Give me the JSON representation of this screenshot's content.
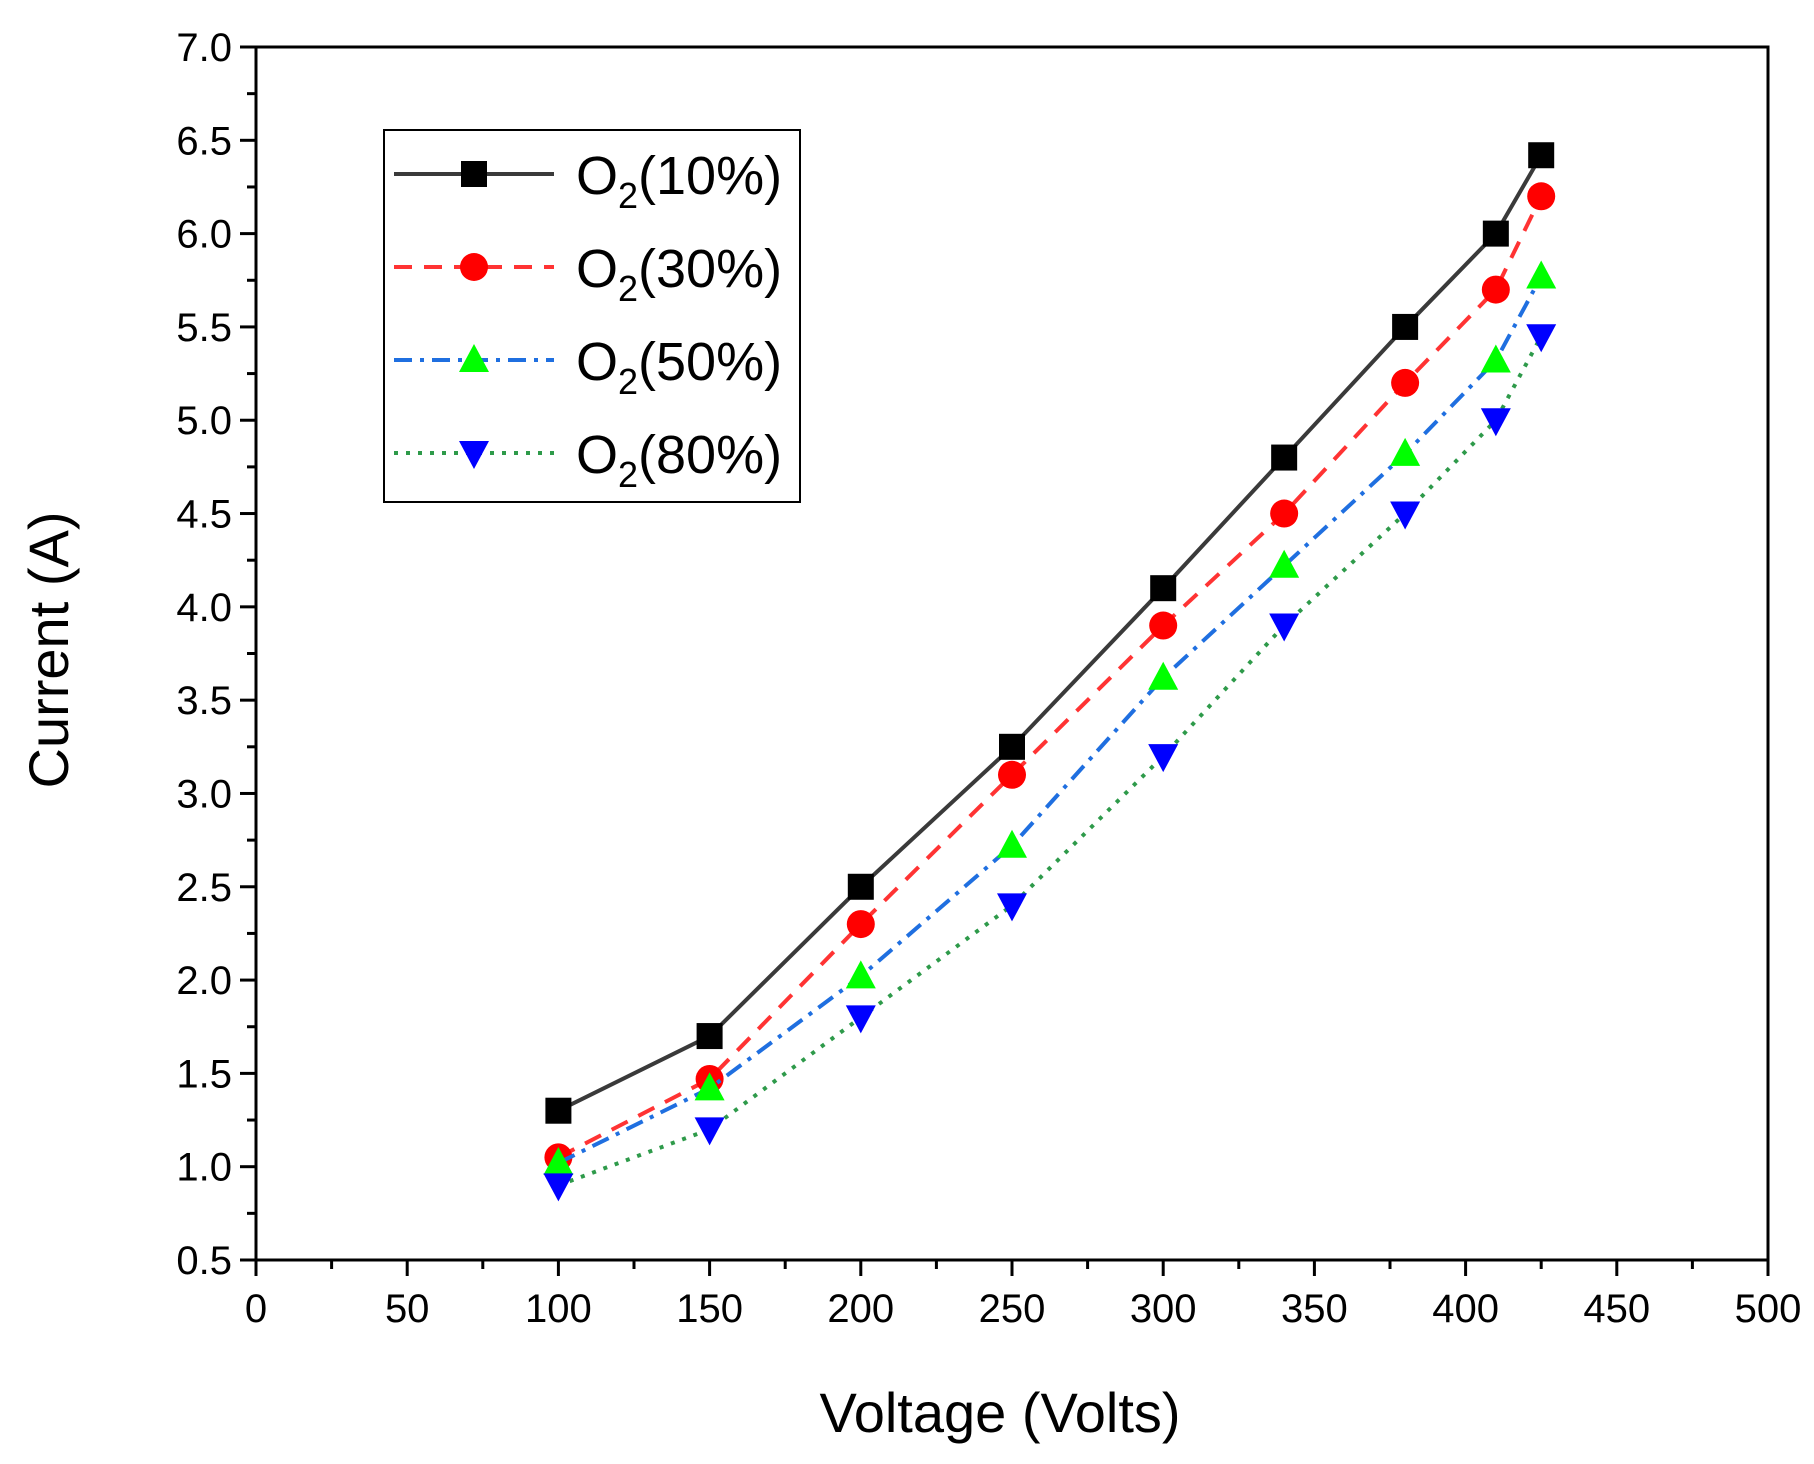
{
  "chart_data": {
    "type": "line",
    "xlabel": "Voltage (Volts)",
    "ylabel": "Current (A)",
    "xlim": [
      0,
      500
    ],
    "ylim": [
      0.5,
      7.0
    ],
    "x_ticks": [
      "0",
      "50",
      "100",
      "150",
      "200",
      "250",
      "300",
      "350",
      "400",
      "450",
      "500"
    ],
    "y_ticks": [
      "0.5",
      "1.0",
      "1.5",
      "2.0",
      "2.5",
      "3.0",
      "3.5",
      "4.0",
      "4.5",
      "5.0",
      "5.5",
      "6.0",
      "6.5",
      "7.0"
    ],
    "grid": false,
    "legend_position": "top-left",
    "x": [
      100,
      150,
      200,
      250,
      300,
      340,
      380,
      410,
      425
    ],
    "series": [
      {
        "name": "O2(10%)",
        "name_base": "O",
        "name_sub": "2",
        "name_suffix": "(10%)",
        "values": [
          1.3,
          1.7,
          2.5,
          3.25,
          4.1,
          4.8,
          5.5,
          6.0,
          6.42
        ],
        "color": "#3a3a3a",
        "marker_color": "#000000",
        "marker": "square",
        "line_style": "solid"
      },
      {
        "name": "O2(30%)",
        "name_base": "O",
        "name_sub": "2",
        "name_suffix": "(30%)",
        "values": [
          1.05,
          1.47,
          2.3,
          3.1,
          3.9,
          4.5,
          5.2,
          5.7,
          6.2
        ],
        "color": "#ff3333",
        "marker_color": "#ff0000",
        "marker": "circle",
        "line_style": "dash"
      },
      {
        "name": "O2(50%)",
        "name_base": "O",
        "name_sub": "2",
        "name_suffix": "(50%)",
        "values": [
          1.02,
          1.42,
          2.02,
          2.72,
          3.62,
          4.22,
          4.82,
          5.32,
          5.77
        ],
        "color": "#1f6fe0",
        "marker_color": "#00ff00",
        "marker": "triangle-up",
        "line_style": "dashdot"
      },
      {
        "name": "O2(80%)",
        "name_base": "O",
        "name_sub": "2",
        "name_suffix": "(80%)",
        "values": [
          0.9,
          1.2,
          1.8,
          2.4,
          3.2,
          3.9,
          4.5,
          5.0,
          5.45
        ],
        "color": "#2e9a4a",
        "marker_color": "#0000ff",
        "marker": "triangle-down",
        "line_style": "dot"
      }
    ]
  }
}
